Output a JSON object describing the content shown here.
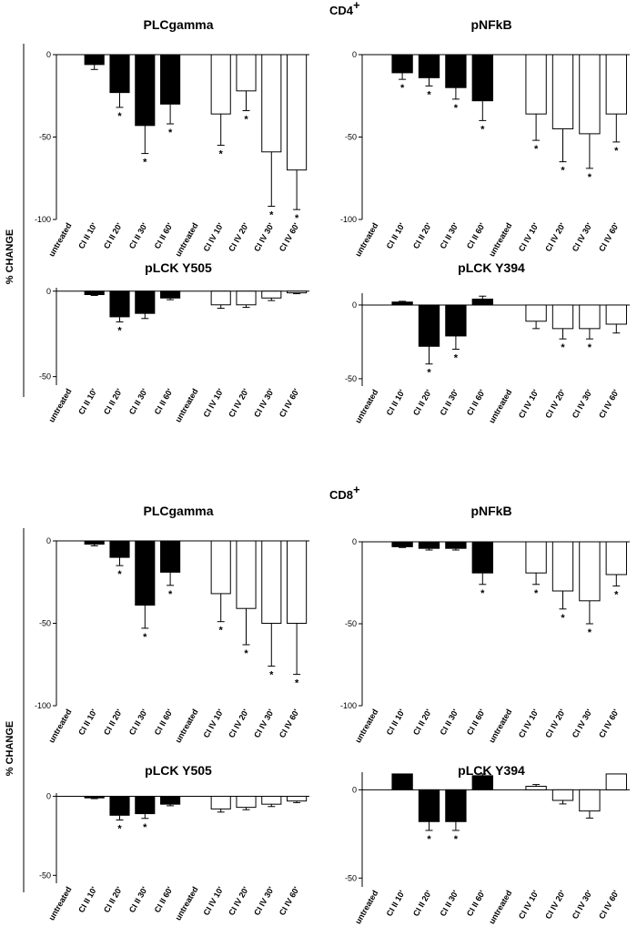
{
  "figure": {
    "y_axis_label": "% CHANGE",
    "categories": [
      "untreated",
      "CI II 10'",
      "CI II 20'",
      "CI II 30'",
      "CI II 60'",
      "untreated",
      "CI IV 10'",
      "CI IV 20'",
      "CI IV 30'",
      "CI IV 60'"
    ],
    "fill_colors": [
      "#000000",
      "#ffffff"
    ],
    "sections": [
      {
        "title": "CD4",
        "superscript": "+"
      },
      {
        "title": "CD8",
        "superscript": "+"
      }
    ]
  },
  "chart_data": [
    {
      "type": "bar",
      "section": "CD4+",
      "title": "PLCgamma",
      "ylim": [
        -100,
        0
      ],
      "yticks": [
        0,
        -50,
        -100
      ],
      "values": [
        0,
        -6,
        -23,
        -43,
        -30,
        0,
        -36,
        -22,
        -59,
        -70
      ],
      "errors": [
        0,
        3,
        9,
        17,
        12,
        0,
        19,
        12,
        33,
        24
      ],
      "significant": [
        false,
        false,
        true,
        true,
        true,
        false,
        true,
        true,
        true,
        true
      ]
    },
    {
      "type": "bar",
      "section": "CD4+",
      "title": "pNFkB",
      "ylim": [
        -100,
        0
      ],
      "yticks": [
        0,
        -50,
        -100
      ],
      "values": [
        0,
        -11,
        -14,
        -20,
        -28,
        0,
        -36,
        -45,
        -48,
        -36
      ],
      "errors": [
        0,
        4,
        5,
        7,
        12,
        0,
        16,
        20,
        21,
        17
      ],
      "significant": [
        false,
        true,
        true,
        true,
        true,
        false,
        true,
        true,
        true,
        true
      ]
    },
    {
      "type": "bar",
      "section": "CD4+",
      "title": "pLCK Y505",
      "ylim": [
        -55,
        2
      ],
      "yticks": [
        0,
        -50
      ],
      "values": [
        0,
        -2,
        -15,
        -13,
        -4,
        0,
        -8,
        -8,
        -4,
        -1
      ],
      "errors": [
        0,
        0.5,
        3,
        3,
        1,
        0,
        2,
        1.5,
        1.5,
        0.5
      ],
      "significant": [
        false,
        false,
        true,
        false,
        false,
        false,
        false,
        false,
        false,
        false
      ]
    },
    {
      "type": "bar",
      "section": "CD4+",
      "title": "pLCK Y394",
      "ylim": [
        -55,
        8
      ],
      "yticks": [
        0,
        -50
      ],
      "values": [
        0,
        2,
        -28,
        -21,
        4,
        0,
        -11,
        -16,
        -16,
        -13
      ],
      "errors": [
        0,
        0.5,
        12,
        9,
        2,
        0,
        5,
        7,
        7,
        6
      ],
      "significant": [
        false,
        false,
        true,
        true,
        false,
        false,
        false,
        true,
        true,
        false
      ]
    },
    {
      "type": "bar",
      "section": "CD8+",
      "title": "PLCgamma",
      "ylim": [
        -100,
        0
      ],
      "yticks": [
        0,
        -50,
        -100
      ],
      "values": [
        0,
        -2,
        -10,
        -39,
        -19,
        0,
        -32,
        -41,
        -50,
        -50
      ],
      "errors": [
        0,
        1,
        5,
        14,
        8,
        0,
        17,
        22,
        26,
        31
      ],
      "significant": [
        false,
        false,
        true,
        true,
        true,
        false,
        true,
        true,
        true,
        true
      ]
    },
    {
      "type": "bar",
      "section": "CD8+",
      "title": "pNFkB",
      "ylim": [
        -100,
        0
      ],
      "yticks": [
        0,
        -50,
        -100
      ],
      "values": [
        0,
        -3,
        -4,
        -4,
        -19,
        0,
        -19,
        -30,
        -36,
        -20
      ],
      "errors": [
        0,
        0.5,
        1,
        1,
        7,
        0,
        7,
        11,
        14,
        7
      ],
      "significant": [
        false,
        false,
        false,
        false,
        true,
        false,
        true,
        true,
        true,
        true
      ]
    },
    {
      "type": "bar",
      "section": "CD8+",
      "title": "pLCK Y505",
      "ylim": [
        -55,
        2
      ],
      "yticks": [
        0,
        -50
      ],
      "values": [
        0,
        -1,
        -12,
        -11,
        -5,
        0,
        -8,
        -7,
        -5,
        -3
      ],
      "errors": [
        0,
        0.5,
        3,
        3,
        1,
        0,
        2,
        1.5,
        1.5,
        1
      ],
      "significant": [
        false,
        false,
        true,
        true,
        false,
        false,
        false,
        false,
        false,
        false
      ]
    },
    {
      "type": "bar",
      "section": "CD8+",
      "title": "pLCK Y394",
      "ylim": [
        -55,
        10
      ],
      "yticks": [
        0,
        -50
      ],
      "values": [
        0,
        9,
        -18,
        -18,
        8,
        0,
        2,
        -6,
        -12,
        9
      ],
      "errors": [
        0,
        0,
        5,
        5,
        1,
        0,
        1,
        2,
        4,
        0
      ],
      "significant": [
        false,
        false,
        true,
        true,
        false,
        false,
        false,
        false,
        false,
        false
      ]
    }
  ]
}
